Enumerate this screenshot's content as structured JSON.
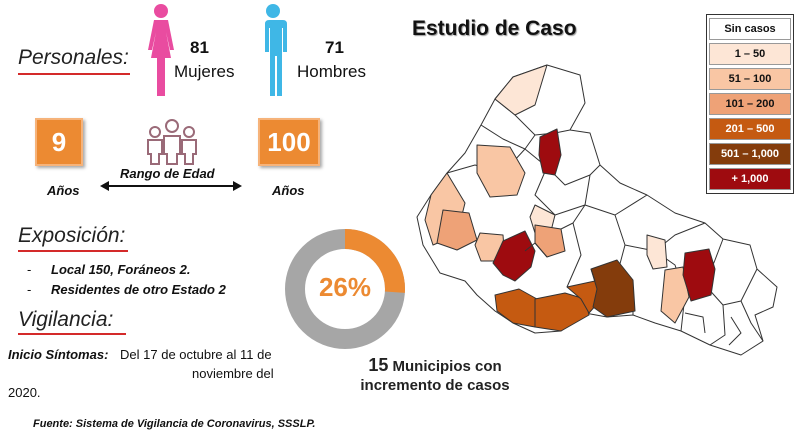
{
  "personales": {
    "title": "Personales:",
    "mujeres_count": "81",
    "mujeres_label": "Mujeres",
    "hombres_count": "71",
    "hombres_label": "Hombres"
  },
  "edad": {
    "min": "9",
    "max": "100",
    "min_unit": "Años",
    "max_unit": "Años",
    "range_label": "Rango de Edad"
  },
  "exposicion": {
    "title": "Exposición:",
    "items": [
      "Local  150, Foráneos 2.",
      "Residentes de otro Estado 2"
    ]
  },
  "vigilancia": {
    "title": "Vigilancia:",
    "inicio_label": "Inicio Síntomas:",
    "inicio_text": "Del 17 de octubre al 11 de",
    "inicio_text2": "noviembre del",
    "inicio_text3": "2020."
  },
  "donut": {
    "percent_label": "26%",
    "percent": 26,
    "fill_color": "#ec8a32",
    "track_color": "#a6a6a6"
  },
  "municipios": {
    "count": "15",
    "line1": "Municipios con",
    "line2": "incremento de casos"
  },
  "map": {
    "title": "Estudio de Caso"
  },
  "legend": [
    {
      "label": "Sin casos",
      "color": "#ffffff",
      "text_color": "#111111"
    },
    {
      "label": "1 – 50",
      "color": "#fde6d6",
      "text_color": "#111111"
    },
    {
      "label": "51 – 100",
      "color": "#f9c6a4",
      "text_color": "#111111"
    },
    {
      "label": "101 – 200",
      "color": "#eea277",
      "text_color": "#111111"
    },
    {
      "label": "201 – 500",
      "color": "#c55a11",
      "text_color": "#ffffff"
    },
    {
      "label": "501 – 1,000",
      "color": "#843c0c",
      "text_color": "#ffffff"
    },
    {
      "label": "+ 1,000",
      "color": "#9e0b0f",
      "text_color": "#ffffff"
    }
  ],
  "source": "Fuente: Sistema de Vigilancia de Coronavirus, SSSLP."
}
